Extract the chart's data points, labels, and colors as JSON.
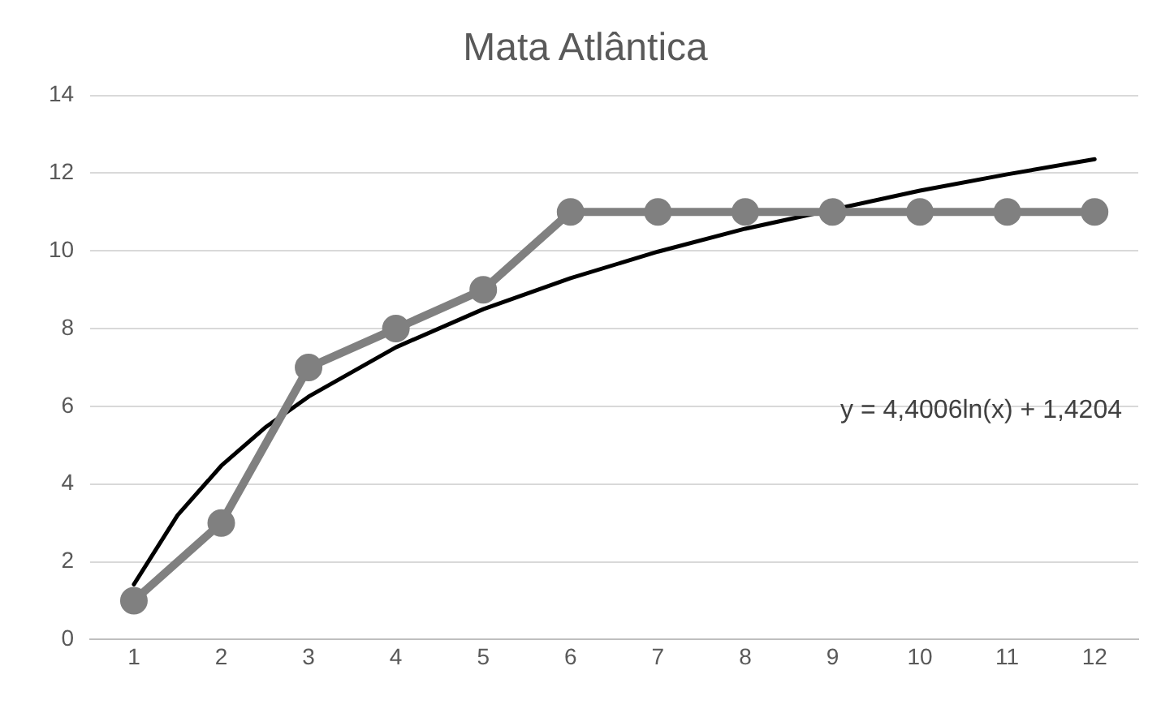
{
  "chart_data": {
    "type": "line",
    "title": "Mata Atlântica",
    "x": [
      1,
      2,
      3,
      4,
      5,
      6,
      7,
      8,
      9,
      10,
      11,
      12
    ],
    "series": [
      {
        "color": "#808080",
        "values": [
          1,
          3,
          7,
          8,
          9,
          11,
          11,
          11,
          11,
          11,
          11,
          11
        ],
        "marker": "circle"
      },
      {
        "type": "line",
        "color": "#000000",
        "marker": "none",
        "x": [
          1,
          1.5,
          2,
          2.5,
          3,
          4,
          5,
          6,
          7,
          8,
          10,
          11,
          12
        ],
        "values": [
          1.42,
          3.2,
          4.47,
          5.45,
          6.25,
          7.52,
          8.5,
          9.3,
          9.98,
          10.57,
          11.55,
          11.97,
          12.36
        ]
      }
    ],
    "xlim": [
      0.5,
      12.5
    ],
    "xticks": [
      1,
      2,
      3,
      4,
      5,
      6,
      7,
      8,
      9,
      10,
      11,
      12
    ],
    "ylim": [
      0,
      14
    ],
    "yticks": [
      0,
      2,
      4,
      6,
      8,
      10,
      12,
      14
    ],
    "grid": "y",
    "legend": false,
    "annotations": [
      "y = 4,4006ln(x) + 1,4204"
    ]
  }
}
